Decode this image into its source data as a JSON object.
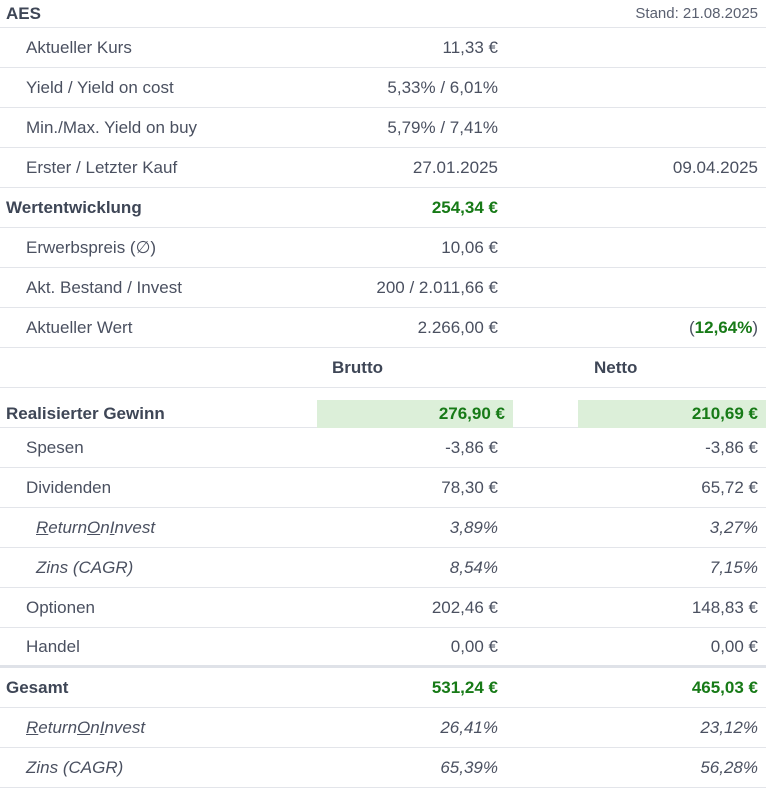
{
  "header": {
    "ticker": "AES",
    "stand": "Stand: 21.08.2025"
  },
  "overview": {
    "kurs": {
      "label": "Aktueller Kurs",
      "value": "11,33 €"
    },
    "yield": {
      "label": "Yield / Yield on cost",
      "value": "5,33% / 6,01%"
    },
    "minmax": {
      "label": "Min./Max. Yield on buy",
      "value": "5,79% / 7,41%"
    },
    "kauf": {
      "label": "Erster / Letzter Kauf",
      "first": "27.01.2025",
      "last": "09.04.2025"
    }
  },
  "wertentwicklung": {
    "label": "Wertentwicklung",
    "value": "254,34 €",
    "erwerb": {
      "label": "Erwerbspreis (∅)",
      "value": "10,06 €"
    },
    "bestand": {
      "label": "Akt. Bestand / Invest",
      "value": "200 / 2.011,66 €"
    },
    "wert": {
      "label": "Aktueller Wert",
      "value": "2.266,00 €",
      "pct_open": "(",
      "pct": "12,64%",
      "pct_close": ")"
    }
  },
  "columns": {
    "brutto": "Brutto",
    "netto": "Netto"
  },
  "realisiert": {
    "label": "Realisierter Gewinn",
    "brutto": "276,90 €",
    "netto": "210,69 €",
    "spesen": {
      "label": "Spesen",
      "brutto": "-3,86 €",
      "netto": "-3,86 €"
    },
    "dividenden": {
      "label": "Dividenden",
      "brutto": "78,30 €",
      "netto": "65,72 €"
    },
    "roi": {
      "label_r": "R",
      "label_1": "eturn ",
      "label_o": "O",
      "label_2": "n ",
      "label_i": "I",
      "label_3": "nvest",
      "brutto": "3,89%",
      "netto": "3,27%"
    },
    "zins": {
      "label": "Zins (CAGR)",
      "brutto": "8,54%",
      "netto": "7,15%"
    },
    "optionen": {
      "label": "Optionen",
      "brutto": "202,46 €",
      "netto": "148,83 €"
    },
    "handel": {
      "label": "Handel",
      "brutto": "0,00 €",
      "netto": "0,00 €"
    }
  },
  "gesamt": {
    "label": "Gesamt",
    "brutto": "531,24 €",
    "netto": "465,03 €",
    "roi": {
      "label_r": "R",
      "label_1": "eturn ",
      "label_o": "O",
      "label_2": "n ",
      "label_i": "I",
      "label_3": "nvest",
      "brutto": "26,41%",
      "netto": "23,12%"
    },
    "zins": {
      "label": "Zins (CAGR)",
      "brutto": "65,39%",
      "netto": "56,28%"
    }
  }
}
